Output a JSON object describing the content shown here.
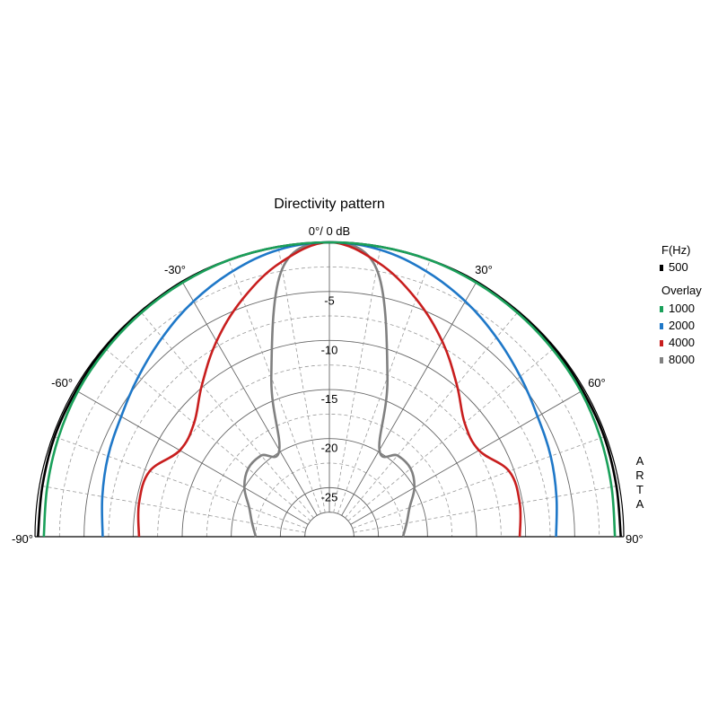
{
  "chart_data": {
    "type": "polar-line",
    "title": "Directivity pattern",
    "reference_label": "0°/ 0 dB",
    "angle_tick_labels": [
      "-90°",
      "-60°",
      "-30°",
      "30°",
      "60°",
      "90°"
    ],
    "angle_ticks": [
      -90,
      -60,
      -30,
      30,
      60,
      90
    ],
    "radial_tick_labels": [
      "-5",
      "-10",
      "-15",
      "-20",
      "-25"
    ],
    "radial_ticks": [
      -5,
      -10,
      -15,
      -20,
      -25
    ],
    "radial_range_db": [
      -30,
      0
    ],
    "grid": true,
    "side_text": "ARTA",
    "legend": {
      "position": "right",
      "frequency_header": "F(Hz)",
      "overlay_header": "Overlay"
    },
    "angles_deg": [
      -90,
      -80,
      -70,
      -60,
      -50,
      -40,
      -30,
      -20,
      -10,
      0,
      10,
      20,
      30,
      40,
      50,
      60,
      70,
      80,
      90
    ],
    "series": [
      {
        "name": "500",
        "color": "#000000",
        "values": [
          -0.3,
          -0.3,
          -0.2,
          -0.2,
          -0.1,
          -0.1,
          0,
          0,
          0,
          0,
          0,
          0,
          0,
          -0.1,
          -0.1,
          -0.2,
          -0.2,
          -0.3,
          -0.3
        ]
      },
      {
        "name": "1000",
        "color": "#1aa05a",
        "values": [
          -0.9,
          -0.8,
          -0.6,
          -0.4,
          -0.3,
          -0.2,
          -0.1,
          0,
          0,
          0,
          0,
          0,
          -0.1,
          -0.2,
          -0.3,
          -0.4,
          -0.6,
          -0.8,
          -0.9
        ]
      },
      {
        "name": "2000",
        "color": "#1f78c8",
        "values": [
          -6.9,
          -6.5,
          -6.0,
          -5.5,
          -4.6,
          -3.5,
          -2.3,
          -1.2,
          -0.3,
          0,
          -0.3,
          -1.2,
          -2.3,
          -3.5,
          -4.6,
          -5.5,
          -6.0,
          -6.5,
          -6.9
        ]
      },
      {
        "name": "4000",
        "color": "#c81e1e",
        "values": [
          -10.6,
          -10.3,
          -10.5,
          -12.4,
          -12.0,
          -9.8,
          -7.0,
          -4.2,
          -1.6,
          0,
          -1.6,
          -4.2,
          -7.0,
          -9.8,
          -12.0,
          -12.4,
          -10.5,
          -10.3,
          -10.6
        ]
      },
      {
        "name": "8000",
        "color": "#808080",
        "values": [
          -22.5,
          -22.0,
          -21.3,
          -20.0,
          -19.2,
          -19.2,
          -19.8,
          -12.7,
          -2.3,
          0,
          -2.3,
          -12.7,
          -19.8,
          -19.2,
          -19.2,
          -20.0,
          -21.3,
          -22.0,
          -22.5
        ]
      }
    ]
  }
}
